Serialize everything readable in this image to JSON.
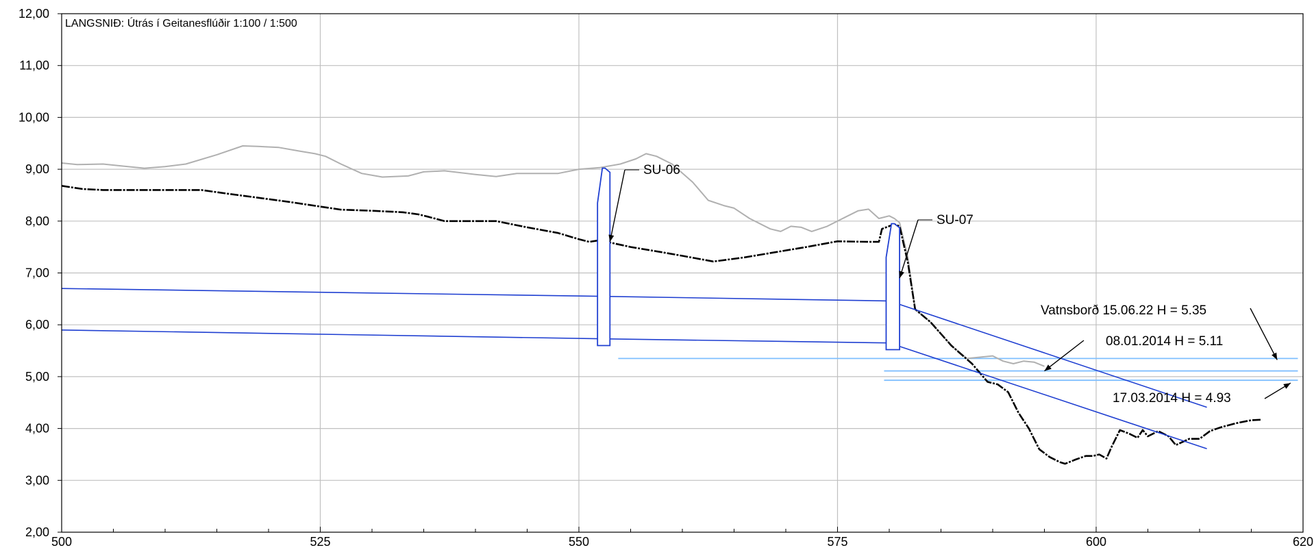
{
  "chart_data": {
    "type": "line",
    "title": "LANGSNIÐ: Útrás í Geitanesflúðir 1:100 / 1:500",
    "xlim": [
      500,
      620
    ],
    "ylim": [
      2,
      12
    ],
    "x_major_ticks": [
      500,
      525,
      550,
      575,
      600,
      620
    ],
    "x_tick_labels": [
      "500",
      "525",
      "550",
      "575",
      "600",
      "620"
    ],
    "x_minor_step": 5,
    "y_ticks": [
      2,
      3,
      4,
      5,
      6,
      7,
      8,
      9,
      10,
      11,
      12
    ],
    "y_tick_labels": [
      "2,00",
      "3,00",
      "4,00",
      "5,00",
      "6,00",
      "7,00",
      "8,00",
      "9,00",
      "10,00",
      "11,00",
      "12,00"
    ],
    "grid": true,
    "colors": {
      "ground": "#000000",
      "terrain": "#b0b0b0",
      "pipe": "#1f3fd1",
      "water": "#7fbfff",
      "grid": "#c0c0c0"
    },
    "series": [
      {
        "key": "terrain",
        "points": [
          [
            500,
            9.12
          ],
          [
            501.5,
            9.09
          ],
          [
            504,
            9.1
          ],
          [
            506,
            9.06
          ],
          [
            508,
            9.02
          ],
          [
            510,
            9.05
          ],
          [
            512,
            9.1
          ],
          [
            515,
            9.28
          ],
          [
            517.5,
            9.45
          ],
          [
            519,
            9.44
          ],
          [
            521,
            9.42
          ],
          [
            523,
            9.35
          ],
          [
            524.5,
            9.3
          ],
          [
            525.5,
            9.25
          ],
          [
            527,
            9.1
          ],
          [
            529,
            8.92
          ],
          [
            531,
            8.85
          ],
          [
            533.5,
            8.87
          ],
          [
            535,
            8.95
          ],
          [
            537,
            8.97
          ],
          [
            540,
            8.9
          ],
          [
            542,
            8.86
          ],
          [
            544,
            8.92
          ],
          [
            546,
            8.92
          ],
          [
            548,
            8.92
          ],
          [
            550,
            9.0
          ],
          [
            552,
            9.03
          ],
          [
            554,
            9.1
          ],
          [
            555.5,
            9.2
          ],
          [
            556.5,
            9.3
          ],
          [
            557.5,
            9.25
          ],
          [
            559,
            9.1
          ],
          [
            561,
            8.75
          ],
          [
            562.5,
            8.4
          ],
          [
            564,
            8.3
          ],
          [
            565,
            8.25
          ],
          [
            566.5,
            8.05
          ],
          [
            568.5,
            7.85
          ],
          [
            569.5,
            7.8
          ],
          [
            570.5,
            7.9
          ],
          [
            571.5,
            7.88
          ],
          [
            572.5,
            7.8
          ],
          [
            574,
            7.9
          ],
          [
            576,
            8.1
          ],
          [
            577,
            8.2
          ],
          [
            578,
            8.23
          ],
          [
            579,
            8.05
          ],
          [
            580,
            8.1
          ],
          [
            580.5,
            8.05
          ],
          [
            581,
            7.97
          ],
          [
            581.8,
            7.3
          ],
          [
            582.5,
            6.3
          ],
          [
            584,
            6.05
          ],
          [
            586,
            5.6
          ],
          [
            587.5,
            5.35
          ],
          [
            589,
            5.38
          ],
          [
            590,
            5.4
          ],
          [
            591,
            5.3
          ],
          [
            592,
            5.25
          ],
          [
            593,
            5.3
          ],
          [
            594,
            5.28
          ],
          [
            595,
            5.2
          ]
        ]
      },
      {
        "key": "ground",
        "points": [
          [
            500,
            8.68
          ],
          [
            502,
            8.62
          ],
          [
            504,
            8.6
          ],
          [
            507,
            8.6
          ],
          [
            510,
            8.6
          ],
          [
            513.5,
            8.6
          ],
          [
            516,
            8.53
          ],
          [
            519,
            8.45
          ],
          [
            522,
            8.37
          ],
          [
            525,
            8.28
          ],
          [
            527,
            8.22
          ],
          [
            530,
            8.2
          ],
          [
            533,
            8.17
          ],
          [
            534.5,
            8.13
          ],
          [
            535.5,
            8.08
          ],
          [
            537,
            8.0
          ],
          [
            540,
            8.0
          ],
          [
            542,
            8.0
          ],
          [
            545,
            7.88
          ],
          [
            548,
            7.77
          ],
          [
            550,
            7.65
          ],
          [
            551,
            7.6
          ],
          [
            552,
            7.63
          ],
          [
            555,
            7.5
          ],
          [
            558,
            7.4
          ],
          [
            560,
            7.33
          ],
          [
            563,
            7.22
          ],
          [
            566,
            7.3
          ],
          [
            569,
            7.4
          ],
          [
            572,
            7.5
          ],
          [
            575,
            7.61
          ],
          [
            578,
            7.6
          ],
          [
            579,
            7.6
          ],
          [
            579.3,
            7.85
          ],
          [
            580.5,
            7.94
          ],
          [
            581,
            7.9
          ],
          [
            581.8,
            7.2
          ],
          [
            582.5,
            6.3
          ],
          [
            584,
            6.05
          ],
          [
            586,
            5.6
          ],
          [
            588,
            5.25
          ],
          [
            589.5,
            4.9
          ],
          [
            590.5,
            4.85
          ],
          [
            591.5,
            4.7
          ],
          [
            592.5,
            4.3
          ],
          [
            593.5,
            4.0
          ],
          [
            594.5,
            3.6
          ],
          [
            595.5,
            3.45
          ],
          [
            596.5,
            3.35
          ],
          [
            597,
            3.32
          ],
          [
            598,
            3.4
          ],
          [
            599,
            3.47
          ],
          [
            599.7,
            3.47
          ],
          [
            600.3,
            3.5
          ],
          [
            601,
            3.42
          ],
          [
            601.5,
            3.65
          ],
          [
            602.3,
            3.97
          ],
          [
            603.2,
            3.9
          ],
          [
            604,
            3.82
          ],
          [
            604.5,
            3.97
          ],
          [
            605,
            3.85
          ],
          [
            606,
            3.95
          ],
          [
            607,
            3.85
          ],
          [
            607.7,
            3.68
          ],
          [
            609,
            3.8
          ],
          [
            610,
            3.8
          ],
          [
            611,
            3.95
          ],
          [
            612,
            4.02
          ],
          [
            613.5,
            4.1
          ],
          [
            615,
            4.16
          ],
          [
            616,
            4.17
          ]
        ]
      },
      {
        "key": "pipe-top",
        "points": [
          [
            500,
            6.7
          ],
          [
            552,
            6.55
          ],
          [
            580,
            6.46
          ],
          [
            610.7,
            4.41
          ]
        ]
      },
      {
        "key": "pipe-bottom",
        "points": [
          [
            500,
            5.9
          ],
          [
            552,
            5.73
          ],
          [
            580,
            5.65
          ],
          [
            610.7,
            3.61
          ]
        ]
      }
    ],
    "water_levels": [
      {
        "label": "Vatnsborð 15.06.22 H = 5.35",
        "y": 5.35,
        "x_start": 553.8,
        "x_end": 619.5
      },
      {
        "label": "08.01.2014 H = 5.11",
        "y": 5.11,
        "x_start": 579.5,
        "x_end": 619.5
      },
      {
        "label": "17.03.2014 H = 4.93",
        "y": 4.93,
        "x_start": 579.5,
        "x_end": 619.5
      }
    ],
    "manholes": [
      {
        "label": "SU-06",
        "x": 551.8,
        "x_right": 553.0,
        "bottom": 5.6,
        "shoulder": 8.35,
        "top": 9.02
      },
      {
        "label": "SU-07",
        "x": 579.7,
        "x_right": 581.0,
        "bottom": 5.52,
        "shoulder": 7.3,
        "top": 7.95
      }
    ]
  }
}
